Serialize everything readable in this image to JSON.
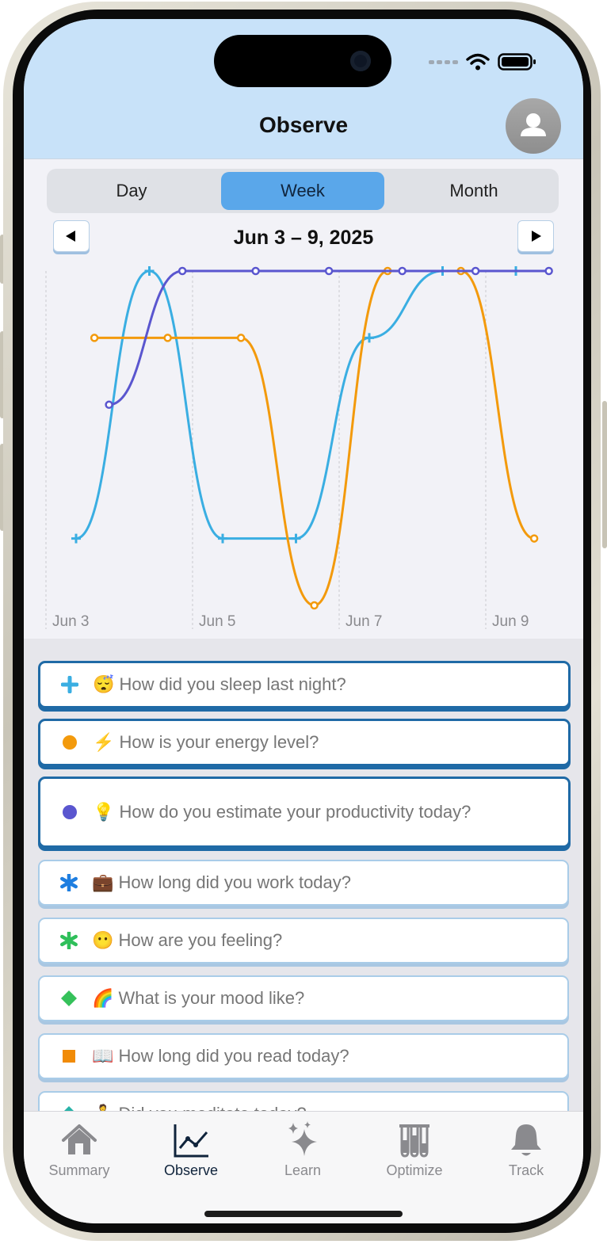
{
  "header": {
    "title": "Observe"
  },
  "segments": [
    {
      "label": "Day",
      "active": false
    },
    {
      "label": "Week",
      "active": true
    },
    {
      "label": "Month",
      "active": false
    }
  ],
  "date_range": "Jun 3 – 9, 2025",
  "colors": {
    "sleep": "#3aaee2",
    "energy": "#f39a0c",
    "productivity": "#5a56cf",
    "work": "#1e7ee0",
    "feeling": "#2fbf5a",
    "mood": "#35c15a",
    "read": "#f18b07",
    "meditate": "#28b3a8"
  },
  "chart_data": {
    "type": "line",
    "x_tick_labels": [
      "Jun 3",
      "Jun 5",
      "Jun 7",
      "Jun 9"
    ],
    "series": [
      {
        "id": "sleep",
        "marker": "plus",
        "points": [
          [
            0,
            1
          ],
          [
            1,
            5
          ],
          [
            2,
            1
          ],
          [
            3,
            1
          ],
          [
            4,
            4
          ],
          [
            5,
            5
          ],
          [
            6,
            5
          ]
        ]
      },
      {
        "id": "energy",
        "marker": "circle",
        "points": [
          [
            0.25,
            4
          ],
          [
            1.25,
            4
          ],
          [
            2.25,
            4
          ],
          [
            3.25,
            0
          ],
          [
            4.25,
            5
          ],
          [
            5.25,
            5
          ],
          [
            6.25,
            1
          ]
        ]
      },
      {
        "id": "productivity",
        "marker": "circle-small",
        "points": [
          [
            0.45,
            3
          ],
          [
            1.45,
            5
          ],
          [
            2.45,
            5
          ],
          [
            3.45,
            5
          ],
          [
            4.45,
            5
          ],
          [
            5.45,
            5
          ],
          [
            6.45,
            5
          ]
        ]
      }
    ],
    "grid": "vertical-dashed"
  },
  "questions": [
    {
      "emoji": "😴",
      "text": "How did you sleep last night?",
      "marker": "plus",
      "color": "#3aaee2",
      "selected": true
    },
    {
      "emoji": "⚡",
      "text": "How is your energy level?",
      "marker": "circle",
      "color": "#f39a0c",
      "selected": true
    },
    {
      "emoji": "💡",
      "text": "How do you estimate your productivity today?",
      "marker": "circle",
      "color": "#5a56cf",
      "selected": true
    },
    {
      "emoji": "💼",
      "text": "How long did you work today?",
      "marker": "asterisk",
      "color": "#1e7ee0",
      "selected": false
    },
    {
      "emoji": "😶",
      "text": "How are you feeling?",
      "marker": "asterisk",
      "color": "#2fbf5a",
      "selected": false
    },
    {
      "emoji": "🌈",
      "text": "What is your mood like?",
      "marker": "diamond",
      "color": "#35c15a",
      "selected": false
    },
    {
      "emoji": "📖",
      "text": "How long did you read today?",
      "marker": "square",
      "color": "#f18b07",
      "selected": false
    },
    {
      "emoji": "🧘",
      "text": "Did you meditate today?",
      "marker": "diamond",
      "color": "#28b3a8",
      "selected": false
    }
  ],
  "tabs": [
    {
      "label": "Summary",
      "icon": "house-icon",
      "active": false
    },
    {
      "label": "Observe",
      "icon": "chart-line-icon",
      "active": true
    },
    {
      "label": "Learn",
      "icon": "sparkles-icon",
      "active": false
    },
    {
      "label": "Optimize",
      "icon": "test-tubes-icon",
      "active": false
    },
    {
      "label": "Track",
      "icon": "bell-icon",
      "active": false
    }
  ]
}
